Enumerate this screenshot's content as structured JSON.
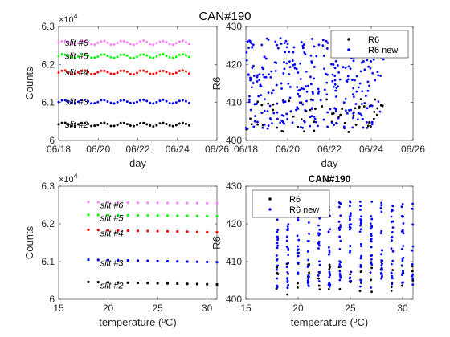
{
  "figure": {
    "suptitle": "CAN#190"
  },
  "chart_data": [
    {
      "type": "scatter",
      "id": "counts-vs-day",
      "xlabel": "day",
      "ylabel": "Counts",
      "y_multiplier": "×10^4",
      "xlim": [
        0,
        8
      ],
      "ylim": [
        60000,
        63000
      ],
      "xticklabels": [
        "06/18",
        "06/20",
        "06/22",
        "06/24",
        "06/26"
      ],
      "yticklabels": [
        "6",
        "6.1",
        "6.2",
        "6.3"
      ],
      "x_start": 0.0,
      "x_end": 6.6,
      "n_points": 41,
      "series": [
        {
          "name": "slit #6",
          "color": "#ff80ff",
          "base": 62570,
          "amp": 50,
          "period": 1
        },
        {
          "name": "slit #5",
          "color": "#00ff00",
          "base": 62220,
          "amp": 50,
          "period": 1
        },
        {
          "name": "slit #4",
          "color": "#ff0000",
          "base": 61790,
          "amp": 50,
          "period": 1
        },
        {
          "name": "slit #3",
          "color": "#0000ff",
          "base": 61020,
          "amp": 45,
          "period": 1
        },
        {
          "name": "slit #2",
          "color": "#000000",
          "base": 60420,
          "amp": 45,
          "period": 1
        }
      ]
    },
    {
      "type": "scatter",
      "id": "r6-vs-day",
      "xlabel": "day",
      "ylabel": "R6",
      "xlim": [
        0,
        8
      ],
      "ylim": [
        400,
        430
      ],
      "xticklabels": [
        "06/18",
        "06/20",
        "06/22",
        "06/24",
        "06/26"
      ],
      "yticklabels": [
        "400",
        "410",
        "420",
        "430"
      ],
      "legend": [
        "R6",
        "R6 new"
      ],
      "legend_loc": "top-right",
      "series": [
        {
          "name": "R6",
          "color": "#000000",
          "x_start": 0.0,
          "x_end": 6.6,
          "n": 60,
          "min": 402,
          "max": 411
        },
        {
          "name": "R6 new",
          "color": "#0000ff",
          "x_start": 0.0,
          "x_end": 6.6,
          "n": 320,
          "min": 403,
          "max": 427
        }
      ]
    },
    {
      "type": "scatter",
      "id": "counts-vs-temperature",
      "xlabel": "temperature (ºC)",
      "ylabel": "Counts",
      "y_multiplier": "×10^4",
      "xlim": [
        15,
        31
      ],
      "ylim": [
        60000,
        63000
      ],
      "xticks": [
        15,
        20,
        25,
        30
      ],
      "yticklabels": [
        "6",
        "6.1",
        "6.2",
        "6.3"
      ],
      "x": [
        18,
        19,
        20,
        21,
        22,
        23,
        24,
        25,
        26,
        27,
        28,
        29,
        30,
        31
      ],
      "series": [
        {
          "name": "slit #6",
          "color": "#ff80ff",
          "values": [
            62580,
            62575,
            62570,
            62568,
            62565,
            62563,
            62560,
            62558,
            62555,
            62553,
            62550,
            62548,
            62545,
            62543
          ]
        },
        {
          "name": "slit #5",
          "color": "#00ff00",
          "values": [
            62240,
            62235,
            62230,
            62228,
            62225,
            62222,
            62220,
            62218,
            62215,
            62212,
            62210,
            62208,
            62205,
            62203
          ]
        },
        {
          "name": "slit #4",
          "color": "#ff0000",
          "values": [
            61840,
            61835,
            61830,
            61825,
            61820,
            61815,
            61810,
            61805,
            61800,
            61795,
            61790,
            61785,
            61780,
            61775
          ]
        },
        {
          "name": "slit #3",
          "color": "#0000ff",
          "values": [
            61050,
            61045,
            61040,
            61035,
            61030,
            61025,
            61020,
            61015,
            61010,
            61005,
            61000,
            60995,
            60990,
            60985
          ]
        },
        {
          "name": "slit #2",
          "color": "#000000",
          "values": [
            60460,
            60455,
            60450,
            60445,
            60440,
            60435,
            60430,
            60425,
            60420,
            60415,
            60410,
            60405,
            60400,
            60395
          ]
        }
      ]
    },
    {
      "type": "scatter",
      "id": "r6-vs-temperature",
      "title": "CAN#190",
      "xlabel": "temperature (ºC)",
      "ylabel": "R6",
      "xlim": [
        15,
        31
      ],
      "ylim": [
        400,
        430
      ],
      "xticks": [
        15,
        20,
        25,
        30
      ],
      "yticklabels": [
        "400",
        "410",
        "420",
        "430"
      ],
      "legend": [
        "R6",
        "R6 new"
      ],
      "legend_loc": "top-left",
      "x_columns": [
        18,
        19,
        20,
        21,
        22,
        23,
        24,
        25,
        26,
        27,
        28,
        29,
        30,
        31
      ],
      "series": [
        {
          "name": "R6",
          "color": "#000000",
          "min": 401,
          "max": 410
        },
        {
          "name": "R6 new",
          "color": "#0000ff",
          "min": 403,
          "max": 426
        }
      ]
    }
  ]
}
